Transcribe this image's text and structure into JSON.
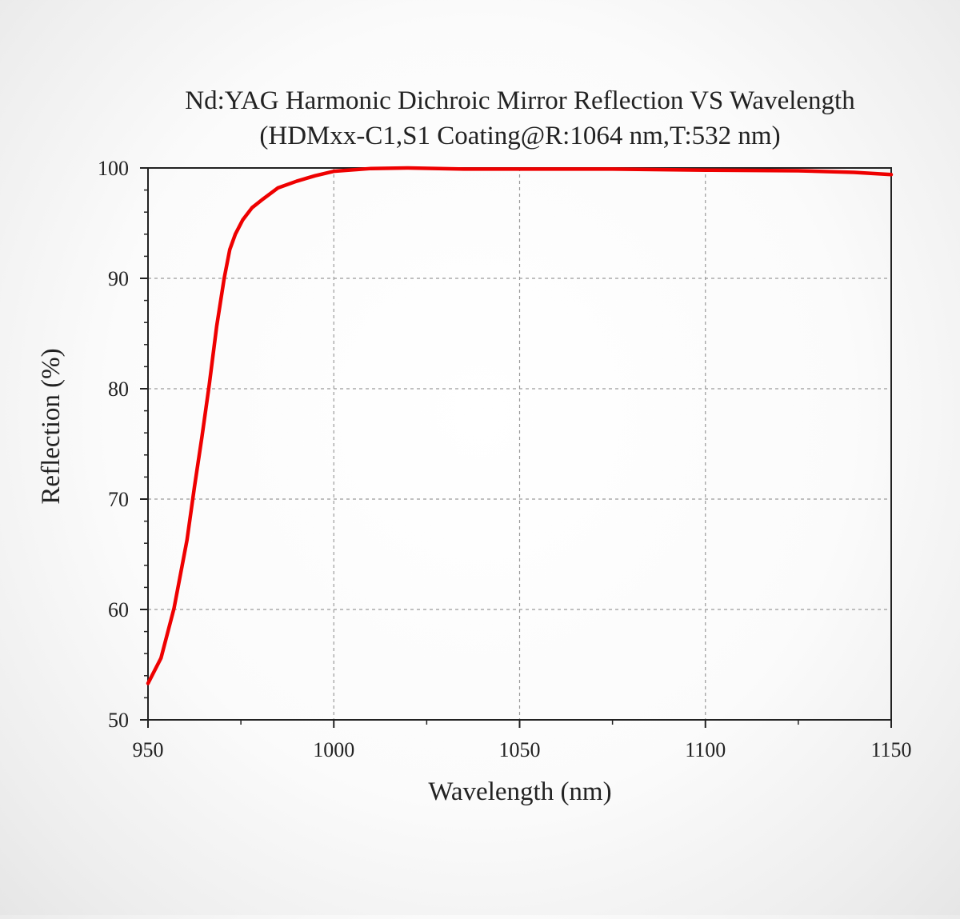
{
  "chart_data": {
    "type": "line",
    "title": "Nd:YAG Harmonic Dichroic Mirror Reflection VS Wavelength",
    "subtitle": "(HDMxx-C1,S1 Coating@R:1064 nm,T:532 nm)",
    "xlabel": "Wavelength (nm)",
    "ylabel": "Reflection (%)",
    "xlim": [
      950,
      1150
    ],
    "ylim": [
      50,
      100
    ],
    "x_ticks": [
      950,
      1000,
      1050,
      1100,
      1150
    ],
    "y_ticks": [
      50,
      60,
      70,
      80,
      90,
      100
    ],
    "x_tick_labels": [
      "950",
      "1000",
      "1050",
      "1100",
      "1150"
    ],
    "y_tick_labels": [
      "50",
      "60",
      "70",
      "80",
      "90",
      "100"
    ],
    "grid": true,
    "legend": "none",
    "series": [
      {
        "color": "#ee0000",
        "x": [
          950,
          953.5,
          957,
          960.5,
          962.5,
          964.5,
          966.5,
          968.5,
          970.5,
          972,
          973.5,
          975.5,
          978,
          981,
          985,
          990,
          995,
          1000,
          1010,
          1020,
          1035,
          1050,
          1075,
          1100,
          1125,
          1140,
          1150
        ],
        "y": [
          53.3,
          55.6,
          60.1,
          66.3,
          71.1,
          75.6,
          80.4,
          85.7,
          90.0,
          92.6,
          94.0,
          95.3,
          96.4,
          97.2,
          98.2,
          98.8,
          99.3,
          99.7,
          99.95,
          100.0,
          99.9,
          99.9,
          99.9,
          99.8,
          99.75,
          99.6,
          99.4
        ]
      }
    ]
  }
}
